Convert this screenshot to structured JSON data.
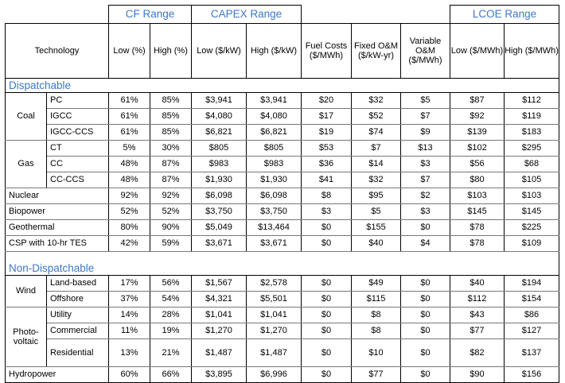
{
  "groups": {
    "cf": "CF Range",
    "capex": "CAPEX Range",
    "lcoe": "LCOE Range"
  },
  "headers": {
    "technology": "Technology",
    "cf_low": "Low (%)",
    "cf_high": "High (%)",
    "capex_low": "Low ($/kW)",
    "capex_high": "High ($/kW)",
    "fuel": "Fuel Costs ($/MWh)",
    "fixed_om": "Fixed O&M ($/kW-yr)",
    "var_om": "Variable O&M ($/MWh)",
    "lcoe_low": "Low ($/MWh)",
    "lcoe_high": "High ($/MWh)"
  },
  "sections": {
    "dispatchable": "Dispatchable",
    "non_dispatchable": "Non-Dispatchable"
  },
  "rows": {
    "coal": {
      "name": "Coal",
      "pc": [
        "PC",
        "61%",
        "85%",
        "$3,941",
        "$3,941",
        "$20",
        "$32",
        "$5",
        "$87",
        "$112"
      ],
      "igcc": [
        "IGCC",
        "61%",
        "85%",
        "$4,080",
        "$4,080",
        "$17",
        "$52",
        "$7",
        "$92",
        "$119"
      ],
      "igcc_ccs": [
        "IGCC-CCS",
        "61%",
        "85%",
        "$6,821",
        "$6,821",
        "$19",
        "$74",
        "$9",
        "$139",
        "$183"
      ]
    },
    "gas": {
      "name": "Gas",
      "ct": [
        "CT",
        "5%",
        "30%",
        "$805",
        "$805",
        "$53",
        "$7",
        "$13",
        "$102",
        "$295"
      ],
      "cc": [
        "CC",
        "48%",
        "87%",
        "$983",
        "$983",
        "$36",
        "$14",
        "$3",
        "$56",
        "$68"
      ],
      "cc_ccs": [
        "CC-CCS",
        "48%",
        "87%",
        "$1,930",
        "$1,930",
        "$41",
        "$32",
        "$7",
        "$80",
        "$105"
      ]
    },
    "nuclear": [
      "Nuclear",
      "92%",
      "92%",
      "$6,098",
      "$6,098",
      "$8",
      "$95",
      "$2",
      "$103",
      "$103"
    ],
    "biopower": [
      "Biopower",
      "52%",
      "52%",
      "$3,750",
      "$3,750",
      "$3",
      "$5",
      "$3",
      "$145",
      "$145"
    ],
    "geothermal": [
      "Geothermal",
      "80%",
      "90%",
      "$5,049",
      "$13,464",
      "$0",
      "$155",
      "$0",
      "$78",
      "$225"
    ],
    "csp": [
      "CSP with 10-hr TES",
      "42%",
      "59%",
      "$3,671",
      "$3,671",
      "$0",
      "$40",
      "$4",
      "$78",
      "$109"
    ],
    "wind": {
      "name": "Wind",
      "land": [
        "Land-based",
        "17%",
        "56%",
        "$1,567",
        "$2,578",
        "$0",
        "$49",
        "$0",
        "$40",
        "$194"
      ],
      "offshore": [
        "Offshore",
        "37%",
        "54%",
        "$4,321",
        "$5,501",
        "$0",
        "$115",
        "$0",
        "$112",
        "$154"
      ]
    },
    "pv": {
      "name_line1": "Photo-",
      "name_line2": "voltaic",
      "utility": [
        "Utility",
        "14%",
        "28%",
        "$1,041",
        "$1,041",
        "$0",
        "$8",
        "$0",
        "$43",
        "$86"
      ],
      "commercial": [
        "Commercial",
        "11%",
        "19%",
        "$1,270",
        "$1,270",
        "$0",
        "$8",
        "$0",
        "$77",
        "$127"
      ],
      "residential": [
        "Residential",
        "13%",
        "21%",
        "$1,487",
        "$1,487",
        "$0",
        "$10",
        "$0",
        "$82",
        "$137"
      ]
    },
    "hydropower": [
      "Hydropower",
      "60%",
      "66%",
      "$3,895",
      "$6,996",
      "$0",
      "$77",
      "$0",
      "$90",
      "$156"
    ]
  }
}
